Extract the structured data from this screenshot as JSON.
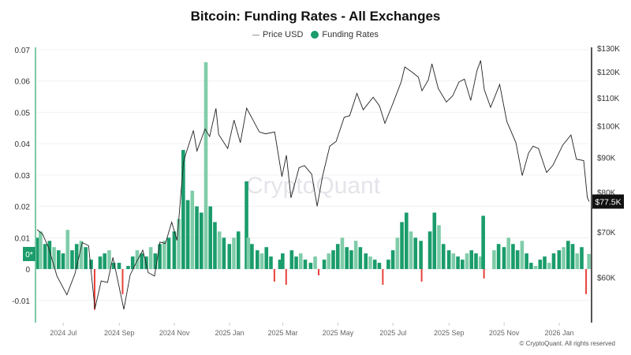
{
  "chart_data": {
    "type": "bar+line",
    "title": "Bitcoin: Funding Rates - All Exchanges",
    "legend": [
      {
        "name": "Price USD",
        "color": "#999999",
        "marker": "line"
      },
      {
        "name": "Funding Rates",
        "color": "#1a9c6b",
        "marker": "dot"
      }
    ],
    "legend_placement": "top-center",
    "watermark": "CryptoQuant",
    "copyright": "© CryptoQuant. All rights reserved",
    "colors": {
      "positive": "#1a9c6b",
      "positive_light": "#7fcca8",
      "negative": "#e8413a",
      "price": "#222222",
      "left_axis": "#7fc9a6",
      "right_axis": "#555555"
    },
    "xlim": [
      "2024-06-02",
      "2026-02-04"
    ],
    "x_ticks": [
      {
        "date": "2024-07-01",
        "label": "2024 Jul"
      },
      {
        "date": "2024-09-01",
        "label": "2024 Sep"
      },
      {
        "date": "2024-11-01",
        "label": "2024 Nov"
      },
      {
        "date": "2025-01-01",
        "label": "2025 Jan"
      },
      {
        "date": "2025-03-01",
        "label": "2025 Mar"
      },
      {
        "date": "2025-05-01",
        "label": "2025 May"
      },
      {
        "date": "2025-07-01",
        "label": "2025 Jul"
      },
      {
        "date": "2025-09-01",
        "label": "2025 Sep"
      },
      {
        "date": "2025-11-01",
        "label": "2025 Nov"
      },
      {
        "date": "2026-01-01",
        "label": "2026 Jan"
      }
    ],
    "left_axis": {
      "ylim": [
        -0.0166,
        0.0715
      ],
      "ticks": [
        {
          "v": 0.07,
          "label": "0.07"
        },
        {
          "v": 0.06,
          "label": "0.06"
        },
        {
          "v": 0.05,
          "label": "0.05"
        },
        {
          "v": 0.04,
          "label": "0.04"
        },
        {
          "v": 0.03,
          "label": "0.03"
        },
        {
          "v": 0.02,
          "label": "0.02"
        },
        {
          "v": 0.01,
          "label": "0.01"
        },
        {
          "v": 0,
          "label": "0"
        },
        {
          "v": -0.01,
          "label": "-0.01"
        }
      ],
      "current_badge": "0*",
      "current_value": 0.0048
    },
    "right_axis": {
      "scale": "log",
      "ylim": [
        51800,
        131400
      ],
      "ticks": [
        {
          "v": 130000,
          "label": "$130K"
        },
        {
          "v": 120000,
          "label": "$120K"
        },
        {
          "v": 110000,
          "label": "$110K"
        },
        {
          "v": 100000,
          "label": "$100K"
        },
        {
          "v": 90000,
          "label": "$90K"
        },
        {
          "v": 80000,
          "label": "$80K"
        },
        {
          "v": 70000,
          "label": "$70K"
        },
        {
          "v": 60000,
          "label": "$60K"
        }
      ],
      "current_badge": "$77.5K",
      "current_value": 77500
    },
    "funding_rates": [
      [
        "2024-06-03",
        0.01
      ],
      [
        "2024-06-06",
        0.012
      ],
      [
        "2024-06-11",
        0.008
      ],
      [
        "2024-06-16",
        0.009
      ],
      [
        "2024-06-21",
        0.007
      ],
      [
        "2024-06-26",
        0.006
      ],
      [
        "2024-07-01",
        0.005
      ],
      [
        "2024-07-06",
        0.0125
      ],
      [
        "2024-07-11",
        0.006
      ],
      [
        "2024-07-16",
        0.008
      ],
      [
        "2024-07-21",
        0.009
      ],
      [
        "2024-07-26",
        0.007
      ],
      [
        "2024-08-01",
        0.003
      ],
      [
        "2024-08-06",
        -0.013
      ],
      [
        "2024-08-11",
        0.004
      ],
      [
        "2024-08-16",
        0.005
      ],
      [
        "2024-08-21",
        0.006
      ],
      [
        "2024-08-26",
        0.002
      ],
      [
        "2024-09-01",
        0.002
      ],
      [
        "2024-09-06",
        -0.008
      ],
      [
        "2024-09-11",
        0.001
      ],
      [
        "2024-09-16",
        0.004
      ],
      [
        "2024-09-21",
        0.006
      ],
      [
        "2024-09-26",
        0.005
      ],
      [
        "2024-10-01",
        0.004
      ],
      [
        "2024-10-06",
        0.007
      ],
      [
        "2024-10-11",
        0.005
      ],
      [
        "2024-10-16",
        0.008
      ],
      [
        "2024-10-21",
        0.009
      ],
      [
        "2024-10-26",
        0.01
      ],
      [
        "2024-11-01",
        0.012
      ],
      [
        "2024-11-06",
        0.016
      ],
      [
        "2024-11-11",
        0.038
      ],
      [
        "2024-11-16",
        0.022
      ],
      [
        "2024-11-21",
        0.025
      ],
      [
        "2024-11-26",
        0.02
      ],
      [
        "2024-12-01",
        0.018
      ],
      [
        "2024-12-06",
        0.066
      ],
      [
        "2024-12-11",
        0.02
      ],
      [
        "2024-12-16",
        0.015
      ],
      [
        "2024-12-21",
        0.012
      ],
      [
        "2024-12-26",
        0.01
      ],
      [
        "2025-01-01",
        0.008
      ],
      [
        "2025-01-06",
        0.01
      ],
      [
        "2025-01-11",
        0.012
      ],
      [
        "2025-01-20",
        0.028
      ],
      [
        "2025-01-22",
        0.01
      ],
      [
        "2025-01-26",
        0.008
      ],
      [
        "2025-02-01",
        0.006
      ],
      [
        "2025-02-06",
        0.005
      ],
      [
        "2025-02-11",
        0.007
      ],
      [
        "2025-02-16",
        0.004
      ],
      [
        "2025-02-21",
        -0.004
      ],
      [
        "2025-02-26",
        0.003
      ],
      [
        "2025-03-01",
        0.005
      ],
      [
        "2025-03-06",
        -0.005
      ],
      [
        "2025-03-11",
        0.006
      ],
      [
        "2025-03-16",
        0.004
      ],
      [
        "2025-03-21",
        0.005
      ],
      [
        "2025-03-26",
        0.003
      ],
      [
        "2025-04-01",
        0.002
      ],
      [
        "2025-04-06",
        0.004
      ],
      [
        "2025-04-11",
        -0.002
      ],
      [
        "2025-04-16",
        0.003
      ],
      [
        "2025-04-21",
        0.005
      ],
      [
        "2025-04-26",
        0.006
      ],
      [
        "2025-05-01",
        0.008
      ],
      [
        "2025-05-06",
        0.01
      ],
      [
        "2025-05-11",
        0.007
      ],
      [
        "2025-05-16",
        0.006
      ],
      [
        "2025-05-21",
        0.009
      ],
      [
        "2025-05-26",
        0.007
      ],
      [
        "2025-06-01",
        0.005
      ],
      [
        "2025-06-06",
        0.004
      ],
      [
        "2025-06-11",
        0.003
      ],
      [
        "2025-06-16",
        0.002
      ],
      [
        "2025-06-21",
        -0.005
      ],
      [
        "2025-06-26",
        0.003
      ],
      [
        "2025-07-01",
        0.006
      ],
      [
        "2025-07-06",
        0.01
      ],
      [
        "2025-07-11",
        0.015
      ],
      [
        "2025-07-16",
        0.018
      ],
      [
        "2025-07-21",
        0.012
      ],
      [
        "2025-07-26",
        0.01
      ],
      [
        "2025-08-01",
        0.009
      ],
      [
        "2025-08-03",
        -0.004
      ],
      [
        "2025-08-11",
        0.012
      ],
      [
        "2025-08-16",
        0.018
      ],
      [
        "2025-08-21",
        0.014
      ],
      [
        "2025-08-26",
        0.008
      ],
      [
        "2025-09-01",
        0.006
      ],
      [
        "2025-09-06",
        0.005
      ],
      [
        "2025-09-11",
        0.004
      ],
      [
        "2025-09-16",
        0.003
      ],
      [
        "2025-09-21",
        0.005
      ],
      [
        "2025-09-26",
        0.006
      ],
      [
        "2025-10-01",
        0.005
      ],
      [
        "2025-10-06",
        0.004
      ],
      [
        "2025-10-09",
        0.017
      ],
      [
        "2025-10-11",
        -0.003
      ],
      [
        "2025-10-21",
        0.006
      ],
      [
        "2025-10-26",
        0.008
      ],
      [
        "2025-11-01",
        0.007
      ],
      [
        "2025-11-06",
        0.01
      ],
      [
        "2025-11-11",
        0.008
      ],
      [
        "2025-11-16",
        0.006
      ],
      [
        "2025-11-21",
        0.009
      ],
      [
        "2025-11-26",
        0.005
      ],
      [
        "2025-12-01",
        0.002
      ],
      [
        "2025-12-06",
        0.001
      ],
      [
        "2025-12-11",
        0.003
      ],
      [
        "2025-12-16",
        0.004
      ],
      [
        "2025-12-21",
        0.002
      ],
      [
        "2025-12-26",
        0.005
      ],
      [
        "2026-01-01",
        0.006
      ],
      [
        "2026-01-06",
        0.007
      ],
      [
        "2026-01-11",
        0.009
      ],
      [
        "2026-01-16",
        0.008
      ],
      [
        "2026-01-21",
        0.005
      ],
      [
        "2026-01-26",
        0.007
      ],
      [
        "2026-02-01",
        -0.008
      ],
      [
        "2026-02-03",
        0.0048
      ]
    ],
    "price_usd": [
      [
        "2024-06-02",
        70500
      ],
      [
        "2024-06-08",
        69500
      ],
      [
        "2024-06-15",
        66200
      ],
      [
        "2024-06-24",
        60300
      ],
      [
        "2024-07-05",
        56600
      ],
      [
        "2024-07-14",
        60800
      ],
      [
        "2024-07-22",
        67500
      ],
      [
        "2024-07-29",
        66800
      ],
      [
        "2024-08-05",
        54000
      ],
      [
        "2024-08-12",
        59300
      ],
      [
        "2024-08-19",
        59000
      ],
      [
        "2024-08-25",
        64200
      ],
      [
        "2024-09-06",
        53900
      ],
      [
        "2024-09-13",
        60500
      ],
      [
        "2024-09-20",
        63200
      ],
      [
        "2024-09-27",
        65800
      ],
      [
        "2024-10-03",
        61000
      ],
      [
        "2024-10-10",
        60300
      ],
      [
        "2024-10-16",
        67600
      ],
      [
        "2024-10-22",
        67300
      ],
      [
        "2024-10-29",
        72300
      ],
      [
        "2024-11-04",
        68000
      ],
      [
        "2024-11-11",
        88500
      ],
      [
        "2024-11-13",
        90400
      ],
      [
        "2024-11-22",
        98500
      ],
      [
        "2024-11-26",
        91900
      ],
      [
        "2024-12-05",
        99000
      ],
      [
        "2024-12-10",
        96500
      ],
      [
        "2024-12-17",
        106100
      ],
      [
        "2024-12-20",
        97200
      ],
      [
        "2024-12-30",
        92700
      ],
      [
        "2025-01-06",
        102000
      ],
      [
        "2025-01-13",
        94500
      ],
      [
        "2025-01-20",
        106200
      ],
      [
        "2025-01-27",
        102000
      ],
      [
        "2025-02-03",
        98000
      ],
      [
        "2025-02-10",
        97400
      ],
      [
        "2025-02-20",
        98000
      ],
      [
        "2025-02-28",
        84300
      ],
      [
        "2025-03-05",
        90600
      ],
      [
        "2025-03-10",
        78500
      ],
      [
        "2025-03-19",
        86900
      ],
      [
        "2025-03-25",
        87500
      ],
      [
        "2025-04-02",
        85000
      ],
      [
        "2025-04-08",
        76300
      ],
      [
        "2025-04-14",
        84500
      ],
      [
        "2025-04-22",
        93400
      ],
      [
        "2025-04-29",
        94900
      ],
      [
        "2025-05-08",
        103000
      ],
      [
        "2025-05-14",
        103500
      ],
      [
        "2025-05-22",
        111600
      ],
      [
        "2025-05-29",
        105600
      ],
      [
        "2025-06-09",
        110200
      ],
      [
        "2025-06-16",
        107000
      ],
      [
        "2025-06-22",
        100900
      ],
      [
        "2025-06-30",
        107200
      ],
      [
        "2025-07-10",
        116000
      ],
      [
        "2025-07-14",
        122000
      ],
      [
        "2025-07-22",
        119900
      ],
      [
        "2025-07-29",
        117900
      ],
      [
        "2025-08-02",
        112600
      ],
      [
        "2025-08-09",
        116800
      ],
      [
        "2025-08-13",
        123300
      ],
      [
        "2025-08-20",
        113500
      ],
      [
        "2025-08-29",
        108400
      ],
      [
        "2025-09-05",
        110700
      ],
      [
        "2025-09-12",
        116000
      ],
      [
        "2025-09-18",
        117100
      ],
      [
        "2025-09-25",
        109000
      ],
      [
        "2025-10-02",
        120600
      ],
      [
        "2025-10-06",
        124700
      ],
      [
        "2025-10-10",
        113000
      ],
      [
        "2025-10-17",
        106500
      ],
      [
        "2025-10-27",
        115000
      ],
      [
        "2025-11-04",
        101500
      ],
      [
        "2025-11-14",
        94500
      ],
      [
        "2025-11-21",
        84600
      ],
      [
        "2025-11-28",
        91300
      ],
      [
        "2025-12-03",
        93400
      ],
      [
        "2025-12-09",
        92700
      ],
      [
        "2025-12-18",
        85500
      ],
      [
        "2025-12-25",
        87600
      ],
      [
        "2026-01-05",
        93800
      ],
      [
        "2026-01-14",
        97000
      ],
      [
        "2026-01-20",
        89400
      ],
      [
        "2026-01-28",
        89000
      ],
      [
        "2026-02-01",
        78600
      ],
      [
        "2026-02-03",
        77500
      ]
    ]
  }
}
